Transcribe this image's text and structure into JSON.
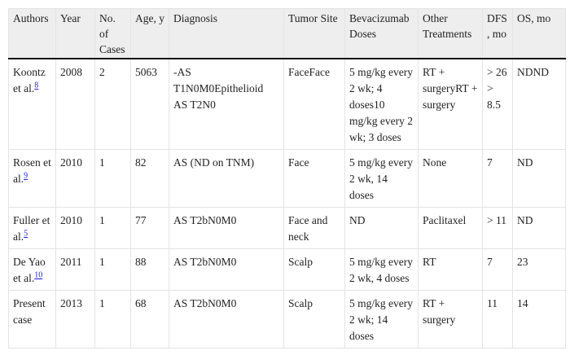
{
  "table": {
    "headers": [
      "Authors",
      "Year",
      "No. of Cases",
      "Age, y",
      "Diagnosis",
      "Tumor Site",
      "Bevacizumab Doses",
      "Other Treatments",
      "DFS, mo",
      "OS, mo"
    ],
    "rows": [
      {
        "author": "Koontz et al.",
        "ref": "8",
        "year": "2008",
        "cases": "2",
        "age": "5063",
        "diagnosis": "-AS T1N0M0Epithelioid AS T2N0",
        "site": "FaceFace",
        "doses": "5 mg/kg every 2 wk; 4 doses10 mg/kg every 2 wk; 3 doses",
        "other": "RT + surgeryRT + surgery",
        "dfs": "> 26 > 8.5",
        "os": "NDND"
      },
      {
        "author": "Rosen et al.",
        "ref": "9",
        "year": "2010",
        "cases": "1",
        "age": "82",
        "diagnosis": "AS (ND on TNM)",
        "site": "Face",
        "doses": "5 mg/kg every 2 wk, 14 doses",
        "other": "None",
        "dfs": "7",
        "os": "ND"
      },
      {
        "author": "Fuller et al.",
        "ref": "5",
        "year": "2010",
        "cases": "1",
        "age": "77",
        "diagnosis": "AS T2bN0M0",
        "site": "Face and neck",
        "doses": "ND",
        "other": "Paclitaxel",
        "dfs": "> 11",
        "os": "ND"
      },
      {
        "author": "De Yao et al.",
        "ref": "10",
        "year": "2011",
        "cases": "1",
        "age": "88",
        "diagnosis": "AS T2bN0M0",
        "site": "Scalp",
        "doses": "5 mg/kg every 2 wk, 4 doses",
        "other": "RT",
        "dfs": "7",
        "os": "23"
      },
      {
        "author": "Present case",
        "ref": "",
        "year": "2013",
        "cases": "1",
        "age": "68",
        "diagnosis": "AS T2bN0M0",
        "site": "Scalp",
        "doses": "5 mg/kg every 2 wk; 14 doses",
        "other": "RT + surgery",
        "dfs": "11",
        "os": "14"
      }
    ]
  }
}
